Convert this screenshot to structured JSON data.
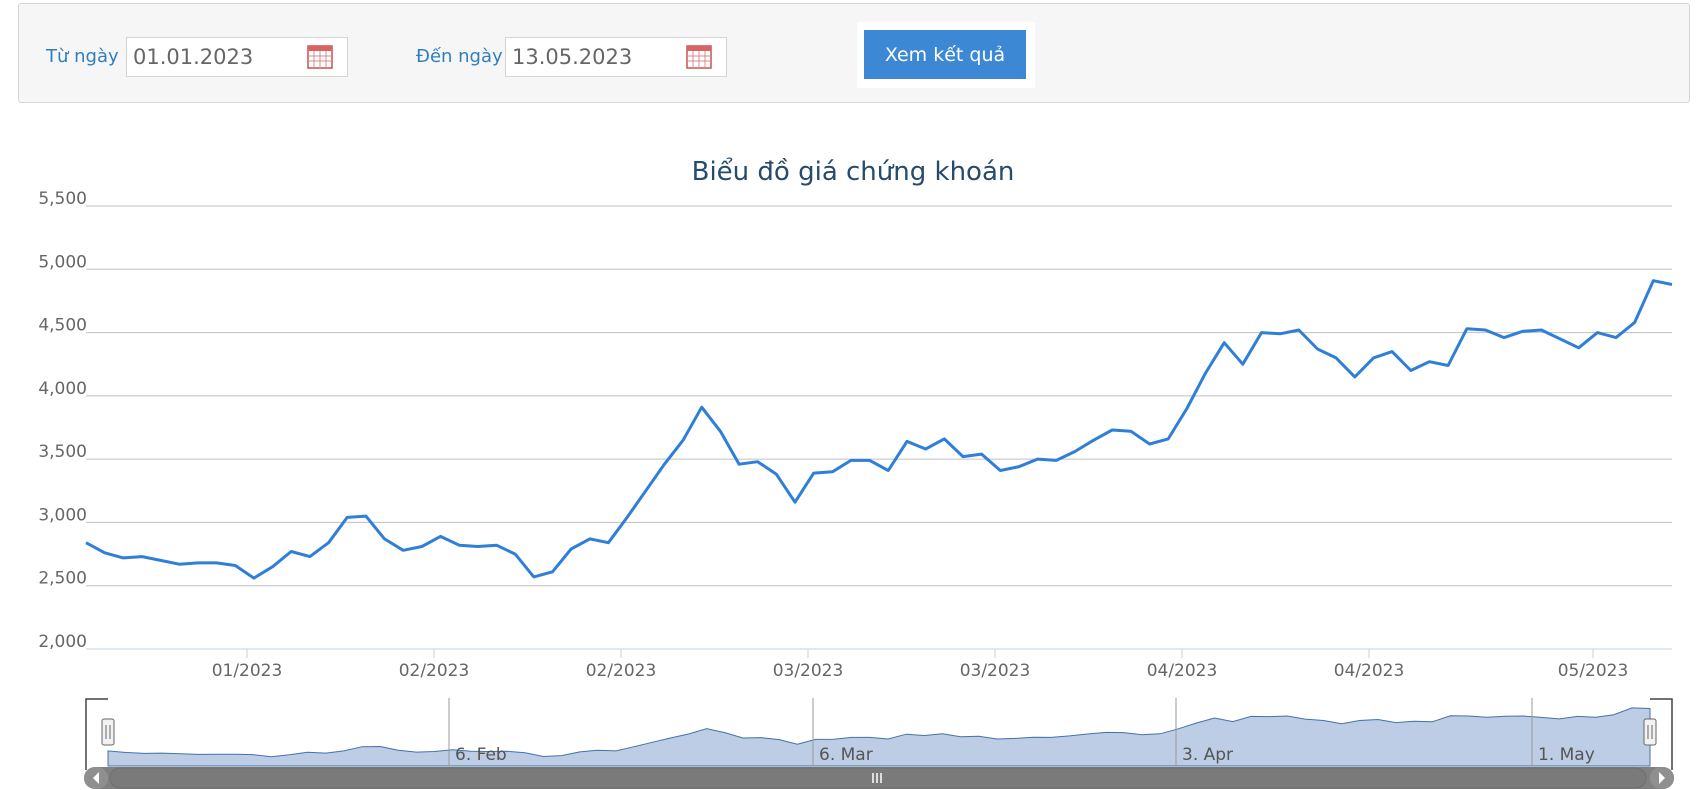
{
  "filter": {
    "from_label": "Từ ngày",
    "from_value": "01.01.2023",
    "to_label": "Đến ngày",
    "to_value": "13.05.2023",
    "submit_label": "Xem kết quả"
  },
  "colors": {
    "accent": "#3d88d4",
    "line": "#2f7ed8",
    "navigator_fill": "#b5c8e2",
    "navigator_stroke": "#4572a7",
    "grid": "#c0c0c0",
    "label": "#2f7fbf"
  },
  "icons": {
    "calendar": "calendar-icon",
    "scroll_left": "arrow-left-icon",
    "scroll_right": "arrow-right-icon",
    "scroll_grip": "grip-icon"
  },
  "chart_data": {
    "type": "line",
    "title": "Biểu đồ giá chứng khoán",
    "xlabel": "",
    "ylabel": "",
    "ylim": [
      2000,
      5500
    ],
    "yticks": [
      "5,500",
      "5,000",
      "4,500",
      "4,000",
      "3,500",
      "3,000",
      "2,500",
      "2,000"
    ],
    "xticks": [
      "01/2023",
      "02/2023",
      "02/2023",
      "03/2023",
      "03/2023",
      "04/2023",
      "04/2023",
      "05/2023"
    ],
    "grid": true,
    "legend": "none",
    "series": [
      {
        "values": [
          2840,
          2760,
          2720,
          2730,
          2700,
          2670,
          2680,
          2680,
          2660,
          2560,
          2650,
          2770,
          2730,
          2840,
          3040,
          3050,
          2870,
          2780,
          2810,
          2890,
          2820,
          2810,
          2820,
          2750,
          2570,
          2610,
          2790,
          2870,
          2840,
          3040,
          3250,
          3460,
          3650,
          3910,
          3720,
          3460,
          3480,
          3380,
          3160,
          3390,
          3400,
          3490,
          3490,
          3410,
          3640,
          3580,
          3660,
          3520,
          3540,
          3410,
          3440,
          3500,
          3490,
          3560,
          3650,
          3730,
          3720,
          3620,
          3660,
          3900,
          4180,
          4420,
          4250,
          4500,
          4490,
          4520,
          4370,
          4300,
          4150,
          4300,
          4350,
          4200,
          4270,
          4240,
          4530,
          4520,
          4460,
          4510,
          4520,
          4450,
          4380,
          4500,
          4460,
          4580,
          4910,
          4880
        ]
      }
    ],
    "navigator": {
      "labels": [
        "6. Feb",
        "6. Mar",
        "3. Apr",
        "1. May"
      ]
    }
  }
}
